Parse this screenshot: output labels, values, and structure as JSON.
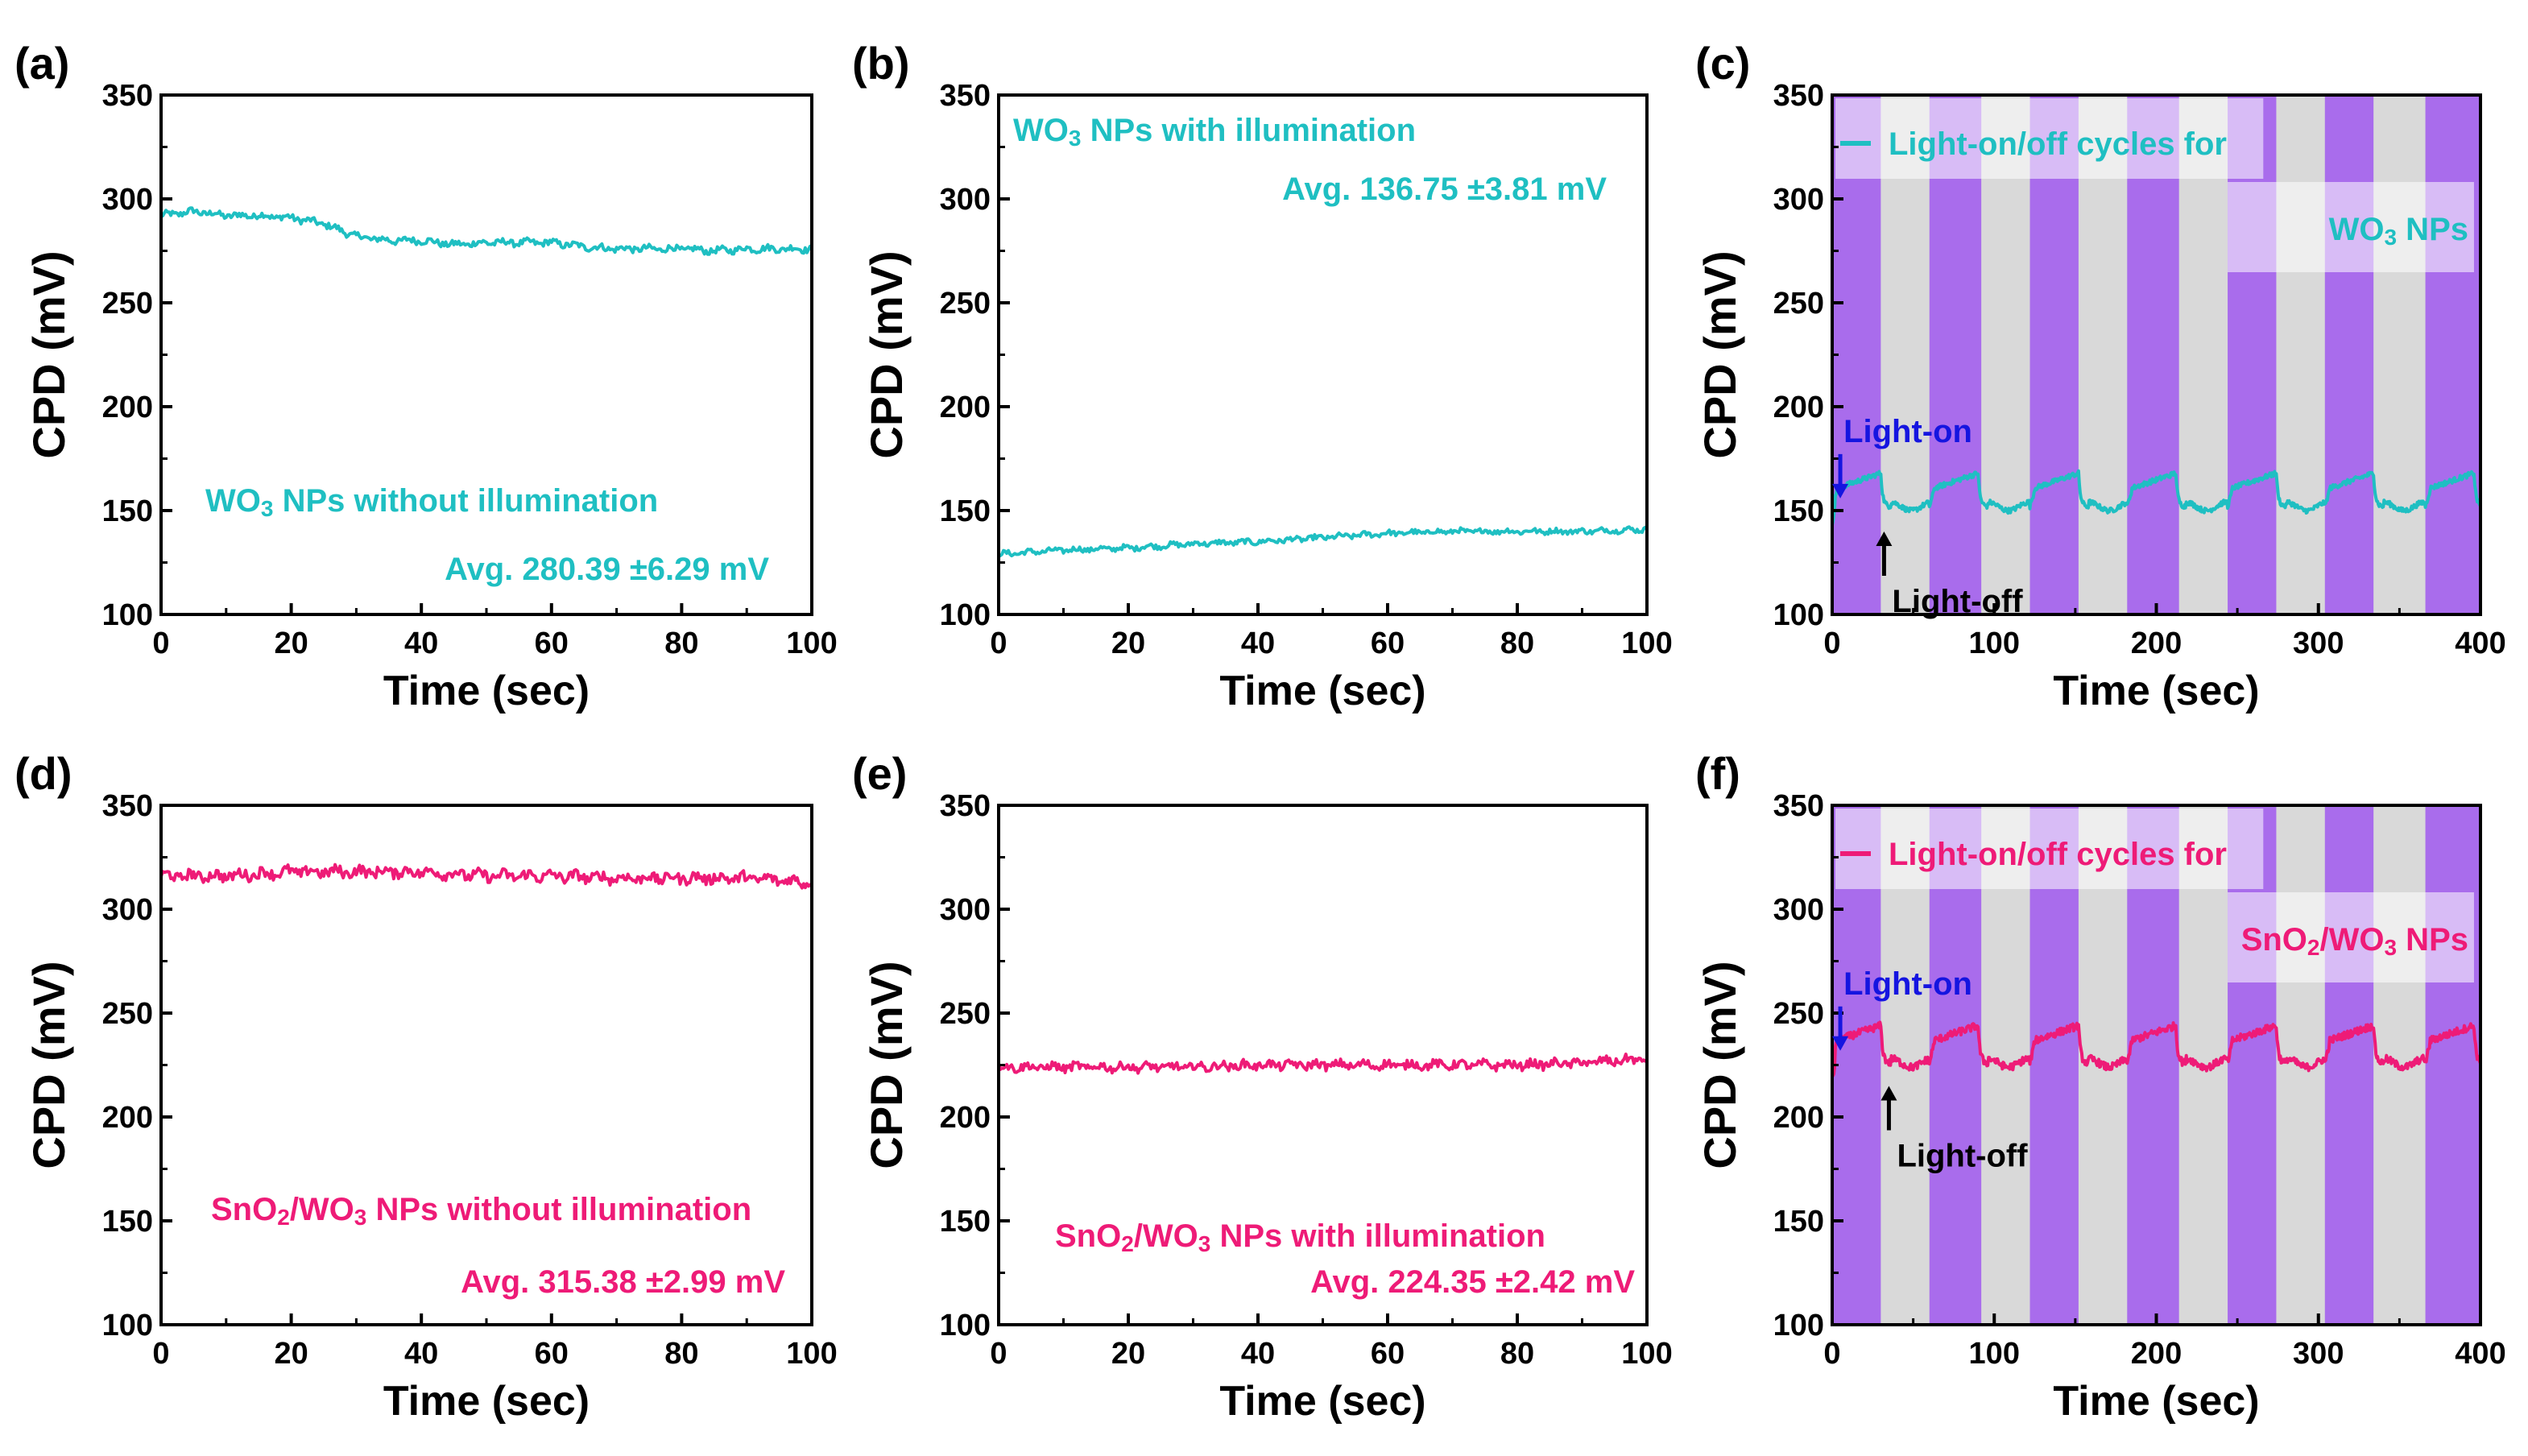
{
  "colors": {
    "cyan": "#1fbfc2",
    "pink": "#ee1b77",
    "on_band": "#a96cec",
    "off_band": "#d9d9d9",
    "blue_arrow": "#1515e0",
    "black": "#000000"
  },
  "chart_data": [
    {
      "id": "a",
      "panel_label": "(a)",
      "type": "line",
      "xlabel": "Time (sec)",
      "ylabel": "CPD (mV)",
      "xlim": [
        0,
        100
      ],
      "ylim": [
        100,
        350
      ],
      "xticks": [
        "0",
        "20",
        "40",
        "60",
        "80",
        "100"
      ],
      "yticks": [
        "100",
        "150",
        "200",
        "250",
        "300",
        "350"
      ],
      "color": "cyan",
      "shading": false,
      "series": [
        {
          "name": "WO3 NPs without illumination",
          "x": [
            0,
            5,
            10,
            15,
            20,
            25,
            30,
            35,
            40,
            45,
            50,
            55,
            60,
            65,
            70,
            75,
            80,
            85,
            90,
            95,
            100
          ],
          "values": [
            292,
            294,
            292,
            292,
            291,
            288,
            282,
            280,
            280,
            278,
            279,
            279,
            279,
            277,
            276,
            276,
            276,
            275,
            276,
            276,
            276
          ]
        }
      ],
      "noise": 1.5,
      "annotations": [
        {
          "text_parts": [
            {
              "t": "WO"
            },
            {
              "t": "3",
              "sub": true
            },
            {
              "t": " NPs without illumination"
            }
          ],
          "color": "cyan"
        },
        {
          "text_parts": [
            {
              "t": "Avg. 280.39 ±6.29 mV"
            }
          ],
          "color": "cyan"
        }
      ]
    },
    {
      "id": "b",
      "panel_label": "(b)",
      "type": "line",
      "xlabel": "Time (sec)",
      "ylabel": "CPD (mV)",
      "xlim": [
        0,
        100
      ],
      "ylim": [
        100,
        350
      ],
      "xticks": [
        "0",
        "20",
        "40",
        "60",
        "80",
        "100"
      ],
      "yticks": [
        "100",
        "150",
        "200",
        "250",
        "300",
        "350"
      ],
      "color": "cyan",
      "shading": false,
      "series": [
        {
          "name": "WO3 NPs with illumination",
          "x": [
            0,
            10,
            20,
            30,
            40,
            50,
            60,
            70,
            80,
            90,
            100
          ],
          "values": [
            129,
            131,
            132,
            134,
            135,
            137,
            139,
            140,
            140,
            140,
            141
          ]
        }
      ],
      "noise": 1.2,
      "annotations": [
        {
          "text_parts": [
            {
              "t": "WO"
            },
            {
              "t": "3",
              "sub": true
            },
            {
              "t": " NPs with illumination"
            }
          ],
          "color": "cyan"
        },
        {
          "text_parts": [
            {
              "t": "Avg. 136.75 ±3.81 mV"
            }
          ],
          "color": "cyan"
        }
      ]
    },
    {
      "id": "c",
      "panel_label": "(c)",
      "type": "line",
      "xlabel": "Time (sec)",
      "ylabel": "CPD (mV)",
      "xlim": [
        0,
        400
      ],
      "ylim": [
        100,
        350
      ],
      "xticks": [
        "0",
        "100",
        "200",
        "300",
        "400"
      ],
      "yticks": [
        "100",
        "150",
        "200",
        "250",
        "300",
        "350"
      ],
      "color": "cyan",
      "shading": true,
      "light_on_intervals": [
        [
          0,
          30
        ],
        [
          60,
          92
        ],
        [
          122,
          152
        ],
        [
          182,
          214
        ],
        [
          244,
          274
        ],
        [
          304,
          334
        ],
        [
          366,
          400
        ]
      ],
      "cycle": {
        "base": 152,
        "peak": 168,
        "on_start": [
          0,
          60,
          122,
          182,
          244,
          304,
          366
        ],
        "on_len": 30,
        "rise_to": 160
      },
      "noise": 1.2,
      "legend_label": "Light-on/off cycles for",
      "legend_sub_parts": [
        {
          "t": "WO"
        },
        {
          "t": "3",
          "sub": true
        },
        {
          "t": " NPs"
        }
      ],
      "light_on_label": "Light-on",
      "light_off_label": "Light-off",
      "light_on_marker": {
        "x": 5,
        "y_tip": 152
      },
      "light_off_marker": {
        "x": 32,
        "y_tip": 143
      }
    },
    {
      "id": "d",
      "panel_label": "(d)",
      "type": "line",
      "xlabel": "Time (sec)",
      "ylabel": "CPD (mV)",
      "xlim": [
        0,
        100
      ],
      "ylim": [
        100,
        350
      ],
      "xticks": [
        "0",
        "20",
        "40",
        "60",
        "80",
        "100"
      ],
      "yticks": [
        "100",
        "150",
        "200",
        "250",
        "300",
        "350"
      ],
      "color": "pink",
      "shading": false,
      "series": [
        {
          "name": "SnO2/WO3 NPs without illumination",
          "x": [
            0,
            10,
            20,
            30,
            40,
            50,
            60,
            70,
            80,
            90,
            100
          ],
          "values": [
            316,
            316,
            318,
            318,
            318,
            316,
            316,
            315,
            315,
            315,
            313
          ]
        }
      ],
      "noise": 2.5,
      "annotations": [
        {
          "text_parts": [
            {
              "t": "SnO"
            },
            {
              "t": "2",
              "sub": true
            },
            {
              "t": "/WO"
            },
            {
              "t": "3",
              "sub": true
            },
            {
              "t": " NPs without illumination"
            }
          ],
          "color": "pink"
        },
        {
          "text_parts": [
            {
              "t": "Avg. 315.38 ±2.99 mV"
            }
          ],
          "color": "pink"
        }
      ]
    },
    {
      "id": "e",
      "panel_label": "(e)",
      "type": "line",
      "xlabel": "Time (sec)",
      "ylabel": "CPD (mV)",
      "xlim": [
        0,
        100
      ],
      "ylim": [
        100,
        350
      ],
      "xticks": [
        "0",
        "20",
        "40",
        "60",
        "80",
        "100"
      ],
      "yticks": [
        "100",
        "150",
        "200",
        "250",
        "300",
        "350"
      ],
      "color": "pink",
      "shading": false,
      "series": [
        {
          "name": "SnO2/WO3 NPs with illumination",
          "x": [
            0,
            10,
            20,
            30,
            40,
            50,
            60,
            70,
            80,
            90,
            100
          ],
          "values": [
            224,
            224,
            224,
            224,
            225,
            225,
            225,
            225,
            225,
            226,
            228
          ]
        }
      ],
      "noise": 2.0,
      "annotations": [
        {
          "text_parts": [
            {
              "t": "SnO"
            },
            {
              "t": "2",
              "sub": true
            },
            {
              "t": "/WO"
            },
            {
              "t": "3",
              "sub": true
            },
            {
              "t": " NPs with illumination"
            }
          ],
          "color": "pink"
        },
        {
          "text_parts": [
            {
              "t": "Avg. 224.35 ±2.42 mV"
            }
          ],
          "color": "pink"
        }
      ]
    },
    {
      "id": "f",
      "panel_label": "(f)",
      "type": "line",
      "xlabel": "Time (sec)",
      "ylabel": "CPD (mV)",
      "xlim": [
        0,
        400
      ],
      "ylim": [
        100,
        350
      ],
      "xticks": [
        "0",
        "100",
        "200",
        "300",
        "400"
      ],
      "yticks": [
        "100",
        "150",
        "200",
        "250",
        "300",
        "350"
      ],
      "color": "pink",
      "shading": true,
      "light_on_intervals": [
        [
          0,
          30
        ],
        [
          60,
          92
        ],
        [
          122,
          152
        ],
        [
          182,
          214
        ],
        [
          244,
          274
        ],
        [
          304,
          334
        ],
        [
          366,
          400
        ]
      ],
      "cycle": {
        "base": 226,
        "peak": 244,
        "on_start": [
          0,
          60,
          122,
          182,
          244,
          304,
          366
        ],
        "on_len": 30,
        "rise_to": 236
      },
      "noise": 1.8,
      "legend_label": "Light-on/off cycles for",
      "legend_sub_parts": [
        {
          "t": "SnO"
        },
        {
          "t": "2",
          "sub": true
        },
        {
          "t": "/WO"
        },
        {
          "t": "3",
          "sub": true
        },
        {
          "t": " NPs"
        }
      ],
      "light_on_label": "Light-on",
      "light_off_label": "Light-off",
      "light_on_marker": {
        "x": 5,
        "y_tip": 228
      },
      "light_off_marker": {
        "x": 35,
        "y_tip": 218
      }
    }
  ]
}
